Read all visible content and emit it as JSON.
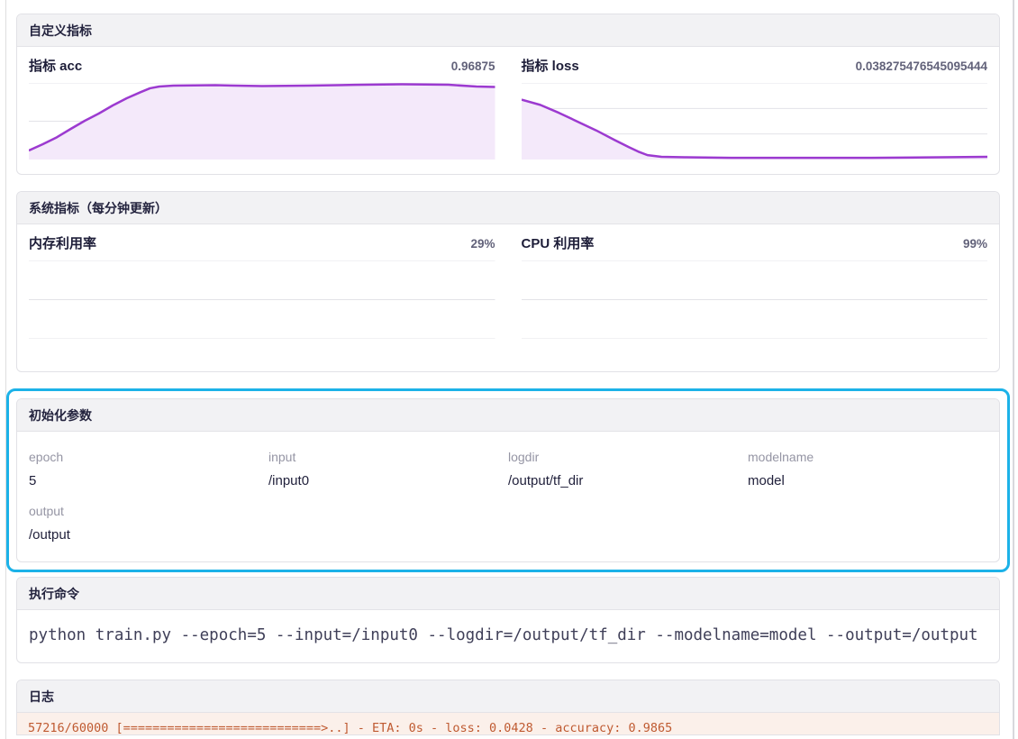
{
  "colors": {
    "accent_purple": "#9c3ad0",
    "fill_purple": "#f4e9fa",
    "gridline": "#e3e3e8",
    "highlight_cyan": "#1cb2e8",
    "log_text": "#bf5a31",
    "log_bg": "#fbf0ea"
  },
  "custom_metrics": {
    "title": "自定义指标",
    "charts": [
      {
        "label": "指标 acc",
        "value": "0.96875",
        "chart_data": {
          "type": "area",
          "title": "指标 acc",
          "current_value": 0.96875,
          "ymax": 1.0,
          "ylim": [
            0,
            1.0
          ],
          "gridline_values": [
            1.0,
            0.5
          ],
          "line_color": "#9c3ad0",
          "fill_color": "#f4e9fa",
          "x_unit": "training-progress-fraction",
          "points": [
            [
              0.0,
              0.118
            ],
            [
              0.03,
              0.2
            ],
            [
              0.06,
              0.29
            ],
            [
              0.09,
              0.4
            ],
            [
              0.12,
              0.506
            ],
            [
              0.15,
              0.6
            ],
            [
              0.18,
              0.706
            ],
            [
              0.21,
              0.8
            ],
            [
              0.24,
              0.88
            ],
            [
              0.26,
              0.93
            ],
            [
              0.28,
              0.953
            ],
            [
              0.31,
              0.965
            ],
            [
              0.4,
              0.97
            ],
            [
              0.5,
              0.959
            ],
            [
              0.6,
              0.965
            ],
            [
              0.7,
              0.975
            ],
            [
              0.8,
              0.982
            ],
            [
              0.9,
              0.976
            ],
            [
              0.96,
              0.953
            ],
            [
              1.0,
              0.947
            ]
          ]
        }
      },
      {
        "label": "指标 loss",
        "value": "0.038275476545095444",
        "chart_data": {
          "type": "area",
          "title": "指标 loss",
          "current_value": 0.038275476545095444,
          "ymax": 0.75,
          "ylim": [
            0,
            0.75
          ],
          "gridline_values": [
            0.75,
            0.5,
            0.25
          ],
          "line_color": "#9c3ad0",
          "fill_color": "#f4e9fa",
          "x_unit": "training-progress-fraction",
          "points": [
            [
              0.0,
              0.586
            ],
            [
              0.04,
              0.535
            ],
            [
              0.08,
              0.457
            ],
            [
              0.12,
              0.371
            ],
            [
              0.16,
              0.285
            ],
            [
              0.2,
              0.19
            ],
            [
              0.23,
              0.121
            ],
            [
              0.25,
              0.078
            ],
            [
              0.27,
              0.043
            ],
            [
              0.3,
              0.026
            ],
            [
              0.35,
              0.022
            ],
            [
              0.45,
              0.017
            ],
            [
              0.6,
              0.017
            ],
            [
              0.75,
              0.017
            ],
            [
              0.9,
              0.022
            ],
            [
              1.0,
              0.026
            ]
          ]
        }
      }
    ]
  },
  "system_metrics": {
    "title": "系统指标（每分钟更新）",
    "charts": [
      {
        "label": "内存利用率",
        "value": "29%",
        "chart_data": {
          "type": "area",
          "title": "内存利用率",
          "current_value": "29%",
          "ymax": 1.0,
          "gridline_values": [
            1.0,
            0.5,
            0.0
          ],
          "line_color": "#9c3ad0",
          "fill_color": "#f4e9fa",
          "points": []
        }
      },
      {
        "label": "CPU 利用率",
        "value": "99%",
        "chart_data": {
          "type": "area",
          "title": "CPU 利用率",
          "current_value": "99%",
          "ymax": 1.0,
          "gridline_values": [
            1.0,
            0.5,
            0.0
          ],
          "line_color": "#9c3ad0",
          "fill_color": "#f4e9fa",
          "points": []
        }
      }
    ]
  },
  "init_params": {
    "title": "初始化参数",
    "params": [
      {
        "name": "epoch",
        "value": "5"
      },
      {
        "name": "input",
        "value": "/input0"
      },
      {
        "name": "logdir",
        "value": "/output/tf_dir"
      },
      {
        "name": "modelname",
        "value": "model"
      },
      {
        "name": "output",
        "value": "/output"
      }
    ]
  },
  "command": {
    "title": "执行命令",
    "text": "python train.py --epoch=5 --input=/input0 --logdir=/output/tf_dir --modelname=model --output=/output"
  },
  "logs": {
    "title": "日志",
    "lines": [
      "57216/60000 [===========================>..] - ETA: 0s - loss: 0.0428 - accuracy: 0.9865"
    ]
  }
}
